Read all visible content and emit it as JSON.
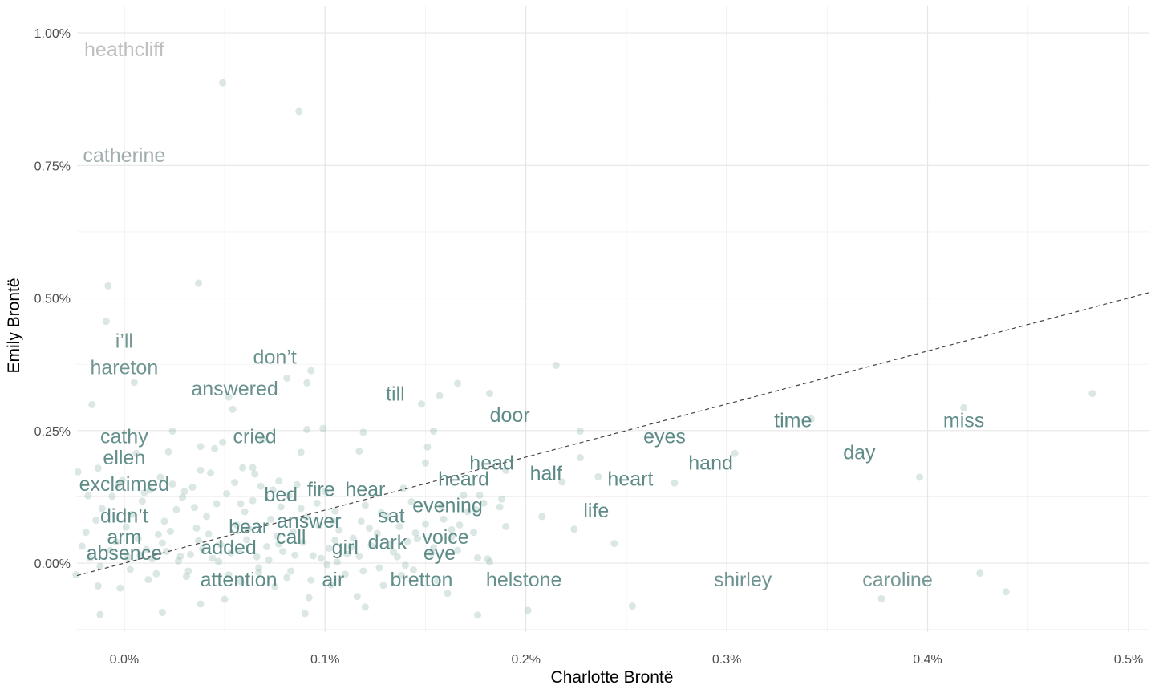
{
  "chart_data": {
    "type": "scatter",
    "xlabel": "Charlotte Brontë",
    "ylabel": "Emily Brontë",
    "xlim": [
      -0.000235,
      0.0051
    ],
    "ylim": [
      -0.0013,
      0.0105
    ],
    "x_ticks": [
      0,
      0.001,
      0.002,
      0.003,
      0.004,
      0.005
    ],
    "x_tick_labels": [
      "0.0%",
      "0.1%",
      "0.2%",
      "0.3%",
      "0.4%",
      "0.5%"
    ],
    "y_ticks": [
      0,
      0.0025,
      0.005,
      0.0075,
      0.01
    ],
    "y_tick_labels": [
      "0.00%",
      "0.25%",
      "0.50%",
      "0.75%",
      "1.00%"
    ],
    "grid": true,
    "reference_line": {
      "style": "dashed",
      "slope": 1,
      "intercept": 0
    },
    "colors": {
      "low": "#5b8a86",
      "high": "#bfbfbf",
      "point": "#8fb3ab",
      "grid": "#e6e6e6"
    },
    "labeled_words": [
      {
        "word": "heathcliff",
        "x": 0.0,
        "y": 0.0097
      },
      {
        "word": "catherine",
        "x": 0.0,
        "y": 0.0077
      },
      {
        "word": "i’ll",
        "x": 0.0,
        "y": 0.0042
      },
      {
        "word": "hareton",
        "x": 0.0,
        "y": 0.0037
      },
      {
        "word": "don’t",
        "x": 0.00075,
        "y": 0.0039
      },
      {
        "word": "answered",
        "x": 0.00055,
        "y": 0.0033
      },
      {
        "word": "till",
        "x": 0.00135,
        "y": 0.0032
      },
      {
        "word": "door",
        "x": 0.00192,
        "y": 0.0028
      },
      {
        "word": "cathy",
        "x": 0.0,
        "y": 0.0024
      },
      {
        "word": "cried",
        "x": 0.00065,
        "y": 0.0024
      },
      {
        "word": "ellen",
        "x": 0.0,
        "y": 0.002
      },
      {
        "word": "exclaimed",
        "x": 0.0,
        "y": 0.0015
      },
      {
        "word": "time",
        "x": 0.00333,
        "y": 0.0027
      },
      {
        "word": "miss",
        "x": 0.00418,
        "y": 0.0027
      },
      {
        "word": "eyes",
        "x": 0.00269,
        "y": 0.0024
      },
      {
        "word": "day",
        "x": 0.00366,
        "y": 0.0021
      },
      {
        "word": "hand",
        "x": 0.00292,
        "y": 0.0019
      },
      {
        "word": "head",
        "x": 0.00183,
        "y": 0.0019
      },
      {
        "word": "half",
        "x": 0.0021,
        "y": 0.0017
      },
      {
        "word": "heart",
        "x": 0.00252,
        "y": 0.0016
      },
      {
        "word": "heard",
        "x": 0.00169,
        "y": 0.0016
      },
      {
        "word": "fire",
        "x": 0.00098,
        "y": 0.0014
      },
      {
        "word": "hear",
        "x": 0.0012,
        "y": 0.0014
      },
      {
        "word": "bed",
        "x": 0.00078,
        "y": 0.0013
      },
      {
        "word": "life",
        "x": 0.00235,
        "y": 0.001
      },
      {
        "word": "evening",
        "x": 0.00161,
        "y": 0.0011
      },
      {
        "word": "sat",
        "x": 0.00133,
        "y": 0.0009
      },
      {
        "word": "answer",
        "x": 0.00092,
        "y": 0.0008
      },
      {
        "word": "didn’t",
        "x": 0.0,
        "y": 0.0009
      },
      {
        "word": "bear",
        "x": 0.00062,
        "y": 0.0007
      },
      {
        "word": "voice",
        "x": 0.0016,
        "y": 0.0005
      },
      {
        "word": "call",
        "x": 0.00083,
        "y": 0.0005
      },
      {
        "word": "arm",
        "x": 0.0,
        "y": 0.0005
      },
      {
        "word": "dark",
        "x": 0.00131,
        "y": 0.0004
      },
      {
        "word": "added",
        "x": 0.00052,
        "y": 0.0003
      },
      {
        "word": "girl",
        "x": 0.0011,
        "y": 0.0003
      },
      {
        "word": "eye",
        "x": 0.00157,
        "y": 0.0002
      },
      {
        "word": "absence",
        "x": 0.0,
        "y": 0.0002
      },
      {
        "word": "attention",
        "x": 0.00057,
        "y": -0.0003
      },
      {
        "word": "air",
        "x": 0.00104,
        "y": -0.0003
      },
      {
        "word": "bretton",
        "x": 0.00148,
        "y": -0.0003
      },
      {
        "word": "helstone",
        "x": 0.00199,
        "y": -0.0003
      },
      {
        "word": "shirley",
        "x": 0.00308,
        "y": -0.0003
      },
      {
        "word": "caroline",
        "x": 0.00385,
        "y": -0.0003
      }
    ],
    "points": [
      [
        0.00049,
        0.00906
      ],
      [
        0.00087,
        0.00852
      ],
      [
        0.00037,
        0.00528
      ],
      [
        -8e-05,
        0.00523
      ],
      [
        -9e-05,
        0.00456
      ],
      [
        0.00215,
        0.00373
      ],
      [
        0.00093,
        0.00363
      ],
      [
        0.00081,
        0.00349
      ],
      [
        0.00166,
        0.00339
      ],
      [
        5e-05,
        0.00341
      ],
      [
        0.00091,
        0.0034
      ],
      [
        0.00182,
        0.0032
      ],
      [
        0.00157,
        0.00316
      ],
      [
        0.00052,
        0.00313
      ],
      [
        0.00482,
        0.0032
      ],
      [
        0.00418,
        0.00293
      ],
      [
        0.00148,
        0.003
      ],
      [
        -0.00016,
        0.00299
      ],
      [
        0.00054,
        0.0029
      ],
      [
        0.00342,
        0.00272
      ],
      [
        0.00099,
        0.00254
      ],
      [
        0.00091,
        0.00252
      ],
      [
        0.00119,
        0.00247
      ],
      [
        0.00227,
        0.00249
      ],
      [
        0.00024,
        0.00249
      ],
      [
        0.00154,
        0.00249
      ],
      [
        0.00049,
        0.00228
      ],
      [
        0.00069,
        0.00233
      ],
      [
        0.00038,
        0.0022
      ],
      [
        0.00045,
        0.00216
      ],
      [
        0.00151,
        0.00219
      ],
      [
        0.00022,
        0.0021
      ],
      [
        0.00088,
        0.00209
      ],
      [
        0.00117,
        0.00211
      ],
      [
        0.00304,
        0.00207
      ],
      [
        6e-05,
        0.00207
      ],
      [
        0.00227,
        0.00199
      ],
      [
        0.0015,
        0.00189
      ],
      [
        0.00064,
        0.0018
      ],
      [
        -0.00013,
        0.00179
      ],
      [
        0.00059,
        0.0018
      ],
      [
        0.00038,
        0.00175
      ],
      [
        0.0019,
        0.00175
      ],
      [
        -0.00023,
        0.00172
      ],
      [
        0.00396,
        0.00162
      ],
      [
        0.00236,
        0.00163
      ],
      [
        0.00218,
        0.00153
      ],
      [
        0.00274,
        0.00151
      ],
      [
        0.00077,
        0.00155
      ],
      [
        0.00055,
        0.00152
      ],
      [
        0.00024,
        0.00149
      ],
      [
        0.00169,
        0.00128
      ],
      [
        0.00177,
        0.00128
      ],
      [
        0.00188,
        0.00121
      ],
      [
        0.00139,
        0.00141
      ],
      [
        0.00187,
        0.00106
      ],
      [
        0.00143,
        0.00116
      ],
      [
        0.00158,
        0.00108
      ],
      [
        0.00105,
        0.00098
      ],
      [
        0.00088,
        0.00103
      ],
      [
        0.0012,
        0.00109
      ],
      [
        0.00128,
        0.00095
      ],
      [
        0.00175,
        0.00101
      ],
      [
        0.00208,
        0.00088
      ],
      [
        0.00224,
        0.00064
      ],
      [
        0.0019,
        0.00069
      ],
      [
        0.00244,
        0.00037
      ],
      [
        0.00163,
        0.00063
      ],
      [
        0.00145,
        0.00057
      ],
      [
        0.00105,
        0.00043
      ],
      [
        0.00176,
        0.0001
      ],
      [
        0.00181,
        8e-05
      ],
      [
        0.00166,
        0.00024
      ],
      [
        0.00154,
        0.00029
      ],
      [
        0.00182,
        2e-05
      ],
      [
        0.00426,
        -0.00019
      ],
      [
        0.00439,
        -0.00054
      ],
      [
        0.00377,
        -0.00067
      ],
      [
        0.00253,
        -0.00081
      ],
      [
        0.00201,
        -0.00089
      ],
      [
        0.00176,
        -0.00098
      ],
      [
        0.0009,
        -0.00095
      ],
      [
        0.00092,
        -0.00065
      ],
      [
        0.0012,
        -0.00083
      ],
      [
        0.00019,
        -0.00093
      ],
      [
        -0.00012,
        -0.00097
      ],
      [
        -0.00013,
        -0.00043
      ],
      [
        -0.00024,
        -0.00022
      ],
      [
        0.0005,
        -0.00068
      ],
      [
        0.00038,
        -0.00077
      ],
      [
        0.00144,
        -0.00013
      ],
      [
        0.00161,
        -0.00057
      ],
      [
        0.00116,
        -0.00063
      ],
      [
        0.00103,
        -0.00041
      ],
      [
        0.00075,
        -0.00044
      ],
      [
        0.00031,
        -0.00025
      ],
      [
        0.00067,
        -9e-05
      ],
      [
        0.00012,
        -0.00031
      ],
      [
        -2e-05,
        -0.00047
      ],
      [
        0.00119,
        -0.00015
      ],
      [
        0.00138,
        -0.00023
      ],
      [
        0.00058,
        -0.00035
      ],
      [
        0.00083,
        -0.00015
      ],
      [
        0.00101,
        -3e-05
      ],
      [
        0.00129,
        -0.00042
      ],
      [
        2e-05,
        0.00011
      ],
      [
        8e-05,
        0.00015
      ],
      [
        0.00014,
        8e-05
      ],
      [
        0.00021,
        0.00022
      ],
      [
        0.00027,
        4e-05
      ],
      [
        0.00033,
        0.00016
      ],
      [
        0.00039,
        0.00027
      ],
      [
        0.00044,
        9e-05
      ],
      [
        0.00048,
        0.00035
      ],
      [
        0.00053,
        0.00019
      ],
      [
        0.00061,
        0.00044
      ],
      [
        0.00066,
        0.00012
      ],
      [
        0.00071,
        0.00031
      ],
      [
        0.00076,
        0.00051
      ],
      [
        0.00079,
        0.00022
      ],
      [
        0.00084,
        0.00059
      ],
      [
        0.00089,
        0.00039
      ],
      [
        0.00094,
        0.00014
      ],
      [
        0.00097,
        0.00071
      ],
      [
        0.00102,
        0.00028
      ],
      [
        0.00107,
        0.00062
      ],
      [
        0.00111,
        0.00017
      ],
      [
        0.00114,
        0.00047
      ],
      [
        0.00118,
        0.00079
      ],
      [
        0.00123,
        0.00033
      ],
      [
        0.00126,
        0.00056
      ],
      [
        0.00131,
        0.00088
      ],
      [
        0.00134,
        0.00021
      ],
      [
        0.00137,
        0.00069
      ],
      [
        0.00141,
        0.00041
      ],
      [
        -0.00019,
        0.00058
      ],
      [
        -0.00014,
        0.00081
      ],
      [
        -0.00011,
        0.00103
      ],
      [
        -6e-05,
        0.00126
      ],
      [
        -3e-05,
        0.00149
      ],
      [
        1e-05,
        0.00068
      ],
      [
        4e-05,
        0.00092
      ],
      [
        9e-05,
        0.00117
      ],
      [
        0.00013,
        0.00138
      ],
      [
        0.00017,
        0.00054
      ],
      [
        0.0002,
        0.00079
      ],
      [
        0.00026,
        0.00101
      ],
      [
        0.00029,
        0.00124
      ],
      [
        0.00034,
        0.00143
      ],
      [
        0.00036,
        0.00066
      ],
      [
        0.00041,
        0.00088
      ],
      [
        0.00046,
        0.00112
      ],
      [
        0.00051,
        0.00131
      ],
      [
        0.00056,
        0.00072
      ],
      [
        0.0006,
        0.00097
      ],
      [
        0.00064,
        0.00118
      ],
      [
        0.00068,
        0.00145
      ],
      [
        0.00073,
        0.00083
      ],
      [
        0.00078,
        0.00106
      ],
      [
        0.00082,
        0.00127
      ],
      [
        0.00086,
        0.00148
      ],
      [
        0.00091,
        0.00087
      ],
      [
        0.00096,
        0.00113
      ],
      [
        0.001,
        0.00135
      ],
      [
        0.00104,
        0.00079
      ],
      [
        -0.00021,
        0.00032
      ],
      [
        -0.00017,
        9e-05
      ],
      [
        -0.00012,
        -6e-05
      ],
      [
        -7e-05,
        0.00024
      ],
      [
        -4e-05,
        0.0004
      ],
      [
        3e-05,
        -0.00012
      ],
      [
        7e-05,
        0.00046
      ],
      [
        0.00011,
        0.00026
      ],
      [
        0.00016,
        -0.0002
      ],
      [
        0.00019,
        0.00038
      ],
      [
        0.00023,
        0.0006
      ],
      [
        0.00028,
        0.00013
      ],
      [
        0.00032,
        -0.00015
      ],
      [
        0.00037,
        0.00042
      ],
      [
        0.00042,
        0.00055
      ],
      [
        0.00047,
        3e-05
      ],
      [
        0.00052,
        -0.00022
      ],
      [
        0.00057,
        0.00024
      ],
      [
        0.00062,
        0.00065
      ],
      [
        0.00067,
        -0.00018
      ],
      [
        0.00072,
        6e-05
      ],
      [
        0.00077,
        0.00036
      ],
      [
        0.00081,
        -0.00027
      ],
      [
        0.00085,
        0.00015
      ],
      [
        0.00093,
        -0.00032
      ],
      [
        0.00098,
        9e-05
      ],
      [
        0.00106,
        2e-05
      ],
      [
        0.0011,
        -0.00021
      ],
      [
        0.00113,
        0.0003
      ],
      [
        0.00117,
        0.00013
      ],
      [
        0.00122,
        0.00066
      ],
      [
        0.00127,
        -9e-05
      ],
      [
        0.00132,
        0.00036
      ],
      [
        0.00136,
        0.00012
      ],
      [
        0.0014,
        -4e-05
      ],
      [
        0.00146,
        0.00046
      ],
      [
        0.0015,
        0.00074
      ],
      [
        0.00153,
        0.00019
      ],
      [
        0.00156,
        -0.00034
      ],
      [
        0.00159,
        0.00083
      ],
      [
        0.00163,
        0.00049
      ],
      [
        0.00167,
        0.00072
      ],
      [
        0.00171,
        0.00097
      ],
      [
        0.00174,
        0.00058
      ],
      [
        0.00179,
        0.00113
      ],
      [
        0.00018,
        0.00162
      ],
      [
        0.0003,
        0.00135
      ],
      [
        0.00043,
        0.0017
      ],
      [
        0.00065,
        0.00168
      ],
      [
        0.00074,
        0.00138
      ],
      [
        -1e-05,
        0.00156
      ],
      [
        0.0001,
        0.00133
      ],
      [
        -0.00018,
        0.00127
      ],
      [
        0.00035,
        0.00105
      ],
      [
        0.00058,
        0.00112
      ]
    ]
  }
}
